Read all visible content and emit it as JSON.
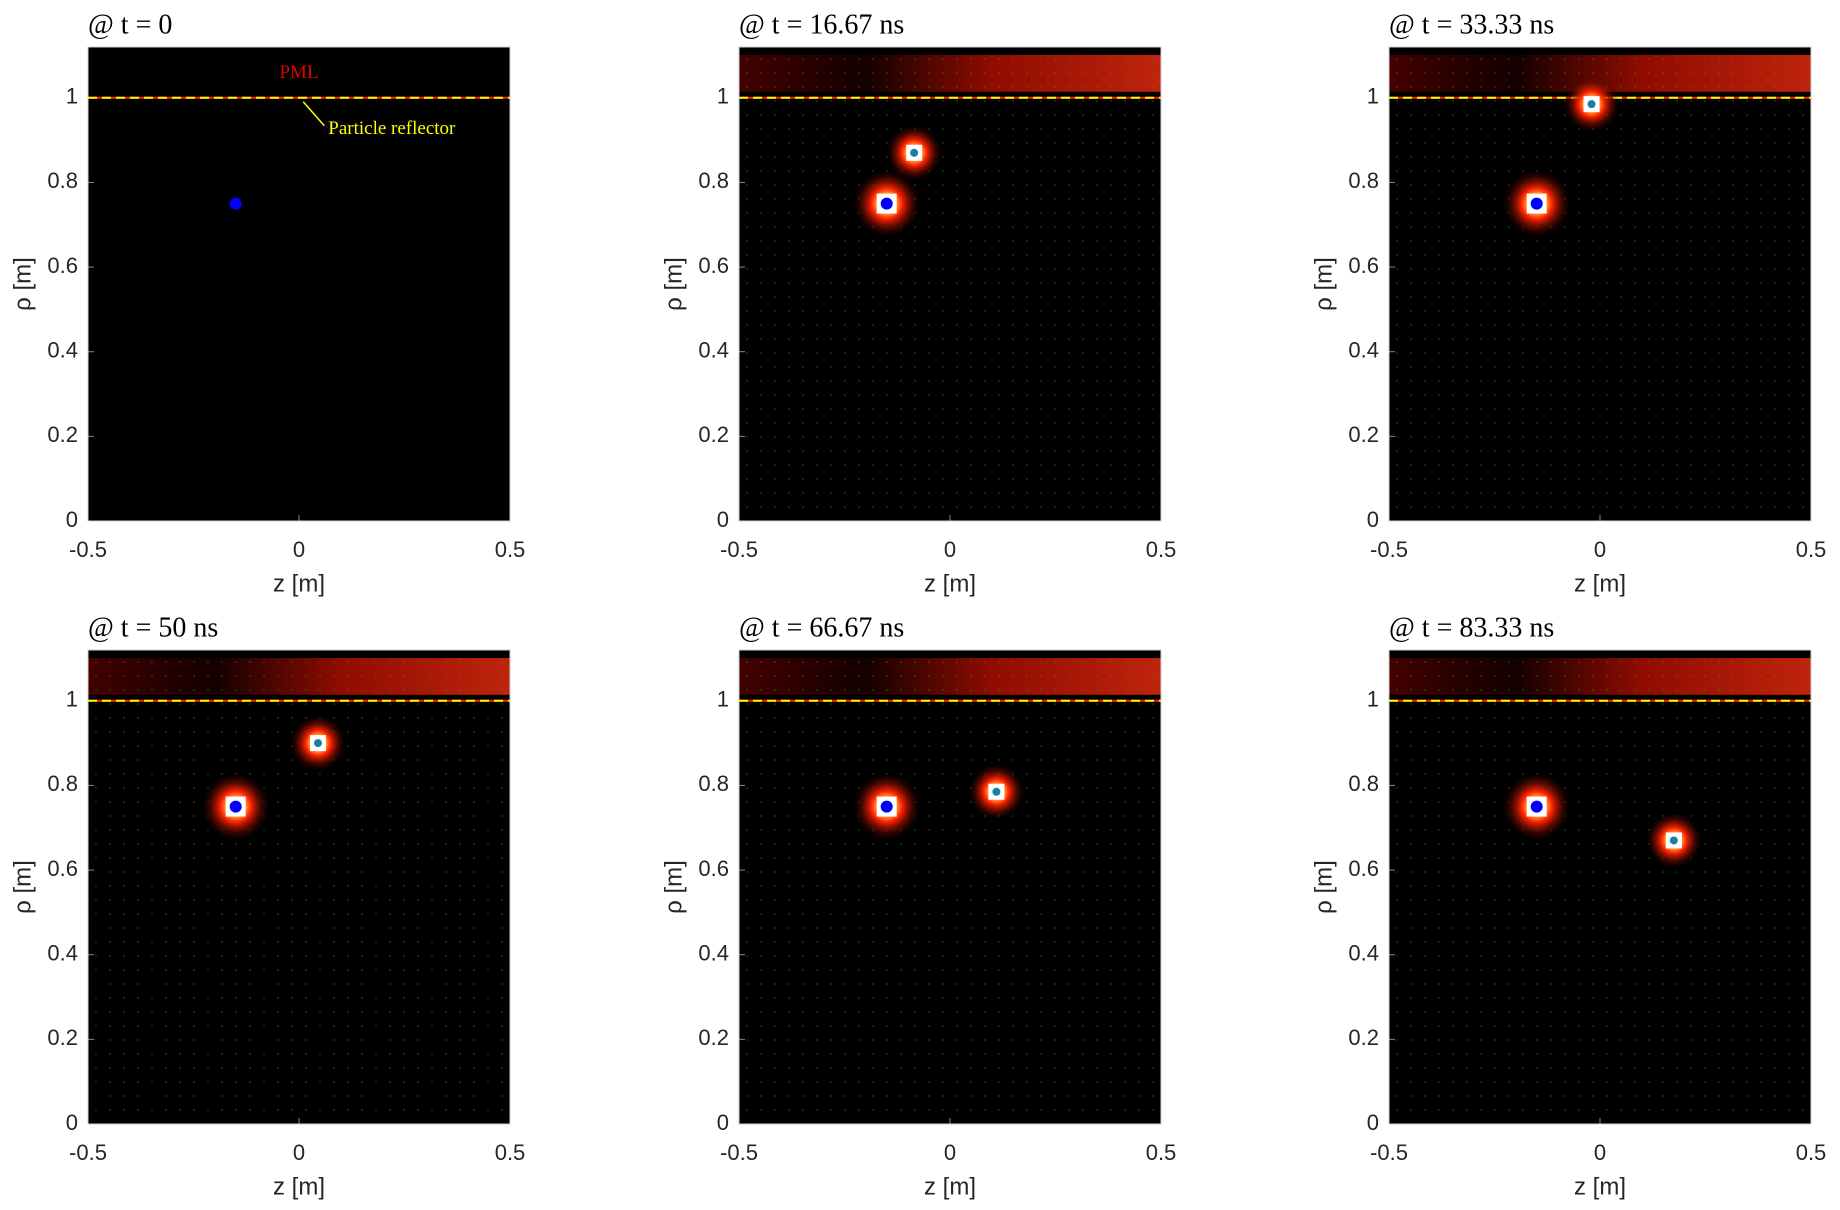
{
  "chart_data": [
    {
      "type": "field",
      "title": "@ t = 0",
      "xlabel": "z [m]",
      "ylabel": "ρ [m]",
      "xlim": [
        -0.5,
        0.5
      ],
      "ylim": [
        0,
        1.12
      ],
      "xticks": [
        -0.5,
        0,
        0.5
      ],
      "yticks": [
        0,
        0.2,
        0.4,
        0.6,
        0.8,
        1
      ],
      "reflector": 1,
      "source": [
        -0.15,
        0.75
      ],
      "source_color": "#0000ff",
      "annotations": [
        "PML",
        "Particle reflector"
      ]
    },
    {
      "type": "field",
      "title": "@ t = 16.67 ns",
      "xlabel": "z [m]",
      "ylabel": "ρ [m]",
      "xlim": [
        -0.5,
        0.5
      ],
      "ylim": [
        0,
        1.12
      ],
      "xticks": [
        -0.5,
        0,
        0.5
      ],
      "yticks": [
        0,
        0.2,
        0.4,
        0.6,
        0.8,
        1
      ],
      "reflector": 1,
      "source": [
        -0.15,
        0.75
      ],
      "source_color": "#0000ff",
      "particle": [
        -0.085,
        0.87
      ]
    },
    {
      "type": "field",
      "title": "@ t = 33.33 ns",
      "xlabel": "z [m]",
      "ylabel": "ρ [m]",
      "xlim": [
        -0.5,
        0.5
      ],
      "ylim": [
        0,
        1.12
      ],
      "xticks": [
        -0.5,
        0,
        0.5
      ],
      "yticks": [
        0,
        0.2,
        0.4,
        0.6,
        0.8,
        1
      ],
      "reflector": 1,
      "source": [
        -0.15,
        0.75
      ],
      "source_color": "#0000ff",
      "particle": [
        -0.02,
        0.985
      ]
    },
    {
      "type": "field",
      "title": "@ t = 50 ns",
      "xlabel": "z [m]",
      "ylabel": "ρ [m]",
      "xlim": [
        -0.5,
        0.5
      ],
      "ylim": [
        0,
        1.12
      ],
      "xticks": [
        -0.5,
        0,
        0.5
      ],
      "yticks": [
        0,
        0.2,
        0.4,
        0.6,
        0.8,
        1
      ],
      "reflector": 1,
      "source": [
        -0.15,
        0.75
      ],
      "source_color": "#0000ff",
      "particle": [
        0.045,
        0.9
      ]
    },
    {
      "type": "field",
      "title": "@ t = 66.67 ns",
      "xlabel": "z [m]",
      "ylabel": "ρ [m]",
      "xlim": [
        -0.5,
        0.5
      ],
      "ylim": [
        0,
        1.12
      ],
      "xticks": [
        -0.5,
        0,
        0.5
      ],
      "yticks": [
        0,
        0.2,
        0.4,
        0.6,
        0.8,
        1
      ],
      "reflector": 1,
      "source": [
        -0.15,
        0.75
      ],
      "source_color": "#0000ff",
      "particle": [
        0.11,
        0.785
      ]
    },
    {
      "type": "field",
      "title": "@ t = 83.33 ns",
      "xlabel": "z [m]",
      "ylabel": "ρ [m]",
      "xlim": [
        -0.5,
        0.5
      ],
      "ylim": [
        0,
        1.12
      ],
      "xticks": [
        -0.5,
        0,
        0.5
      ],
      "yticks": [
        0,
        0.2,
        0.4,
        0.6,
        0.8,
        1
      ],
      "reflector": 1,
      "source": [
        -0.15,
        0.75
      ],
      "source_color": "#0000ff",
      "particle": [
        0.175,
        0.67
      ]
    }
  ]
}
